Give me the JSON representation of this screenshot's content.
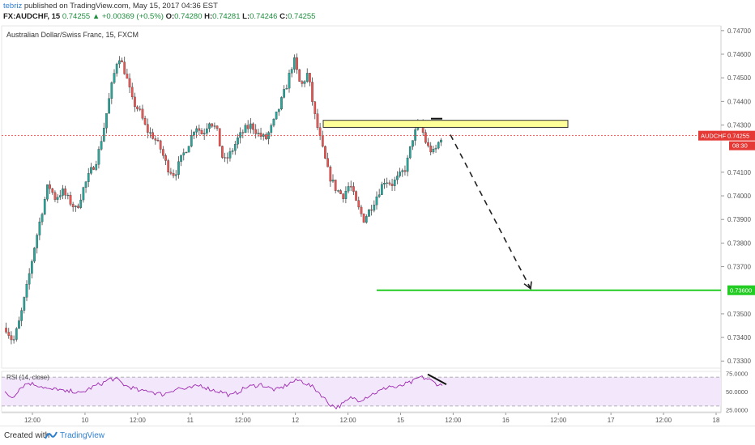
{
  "header": {
    "author": "tebriz",
    "published_text": "published on TradingView.com, May 15, 2017 04:36 EST",
    "symbol": "FX:AUDCHF, 15",
    "last": "0.74255",
    "change_arrow": "▲",
    "change": "+0.00369 (+0.5%)",
    "o_label": "O:",
    "o_value": "0.74280",
    "h_label": "H:",
    "h_value": "0.74281",
    "l_label": "L:",
    "l_value": "0.74246",
    "c_label": "C:",
    "c_value": "0.74255"
  },
  "footer": {
    "created_with": "Created with",
    "brand": "TradingView"
  },
  "chart_data": [
    {
      "type": "candlestick",
      "title": "Australian Dollar/Swiss Franc, 15, FXCM",
      "x_ticks": [
        "12:00",
        "10",
        "12:00",
        "11",
        "12:00",
        "12",
        "12:00",
        "15",
        "12:00",
        "16",
        "12:00",
        "17",
        "12:00",
        "18"
      ],
      "ylim": [
        0.7327,
        0.7472
      ],
      "y_ticks": [
        "0.74700",
        "0.74600",
        "0.74500",
        "0.74400",
        "0.74300",
        "0.74100",
        "0.74000",
        "0.73900",
        "0.73800",
        "0.73700",
        "0.73500",
        "0.73400",
        "0.73300"
      ],
      "last_price": {
        "label": "AUDCHF",
        "value": "0.74255",
        "countdown": "08:30",
        "color": "#e53935"
      },
      "target_level": {
        "value": 0.736,
        "label": "0.73600",
        "color": "#22cc22"
      },
      "resistance_zone": {
        "from": 0.7429,
        "to": 0.7432,
        "fill": "#ffff99",
        "stroke": "#333333"
      },
      "projection_arrow": {
        "from": 0.743,
        "to": 0.736,
        "style": "dashed"
      },
      "series": [
        {
          "kind": "path",
          "values": [
            0.7344,
            0.7338,
            0.7348,
            0.7362,
            0.7378,
            0.7392,
            0.7405,
            0.7399,
            0.7402,
            0.7398,
            0.7394,
            0.7403,
            0.741,
            0.7416,
            0.743,
            0.7446,
            0.746,
            0.7452,
            0.744,
            0.7436,
            0.7428,
            0.7425,
            0.742,
            0.7412,
            0.7409,
            0.7416,
            0.7422,
            0.743,
            0.7426,
            0.7432,
            0.7428,
            0.7414,
            0.7418,
            0.7424,
            0.7428,
            0.743,
            0.7426,
            0.7424,
            0.743,
            0.7438,
            0.7447,
            0.7458,
            0.7446,
            0.7452,
            0.7434,
            0.7421,
            0.7409,
            0.7403,
            0.74,
            0.7405,
            0.7396,
            0.739,
            0.7395,
            0.7401,
            0.7407,
            0.7405,
            0.7408,
            0.7412,
            0.7425,
            0.7431,
            0.7421,
            0.7418,
            0.7425
          ]
        }
      ],
      "colors": {
        "up": "#26a69a",
        "down": "#ef5350"
      }
    },
    {
      "type": "line",
      "title": "RSI (14, close)",
      "ylim": [
        22,
        78
      ],
      "y_ticks": [
        "75.0000",
        "50.0000",
        "25.0000"
      ],
      "overbought": 70,
      "oversold": 30,
      "band_fill": "#f3e8fb",
      "line_color": "#9c27b0",
      "divergence_line": {
        "from": 74,
        "to": 60
      },
      "series": [
        {
          "name": "",
          "values": [
            48,
            42,
            55,
            62,
            60,
            57,
            52,
            54,
            49,
            51,
            47,
            53,
            58,
            62,
            68,
            66,
            58,
            55,
            50,
            52,
            48,
            46,
            51,
            55,
            53,
            56,
            59,
            54,
            51,
            49,
            44,
            50,
            56,
            58,
            60,
            55,
            52,
            57,
            63,
            66,
            61,
            55,
            45,
            33,
            28,
            34,
            42,
            38,
            43,
            48,
            52,
            58,
            55,
            60,
            63,
            70,
            68,
            62,
            58
          ]
        }
      ]
    }
  ]
}
